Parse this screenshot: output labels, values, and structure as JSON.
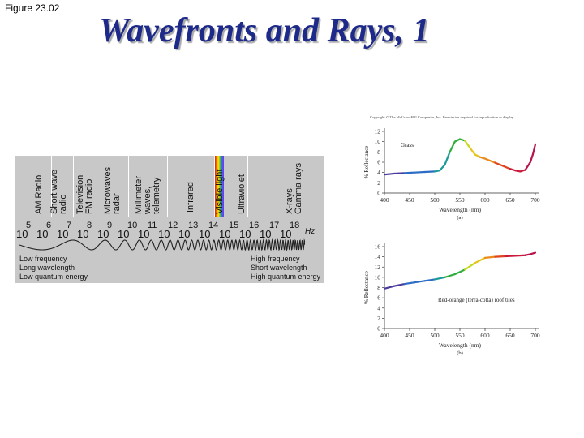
{
  "figure_label": "Figure 23.02",
  "title": "Wavefronts and Rays, 1",
  "spectrum": {
    "bands": [
      {
        "label": "AM Radio"
      },
      {
        "label": "Short wave\nradio"
      },
      {
        "label": "Television\nFM radio"
      },
      {
        "label": "Microwaves\nradar"
      },
      {
        "label": "Millimeter\nwaves,\ntelemetry"
      },
      {
        "label": "Infrared"
      },
      {
        "label": "Visible light"
      },
      {
        "label": "Ultraviolet"
      },
      {
        "label": "X-rays\nGamma rays"
      }
    ],
    "base": "10",
    "exponents": [
      "5",
      "6",
      "7",
      "8",
      "9",
      "10",
      "11",
      "12",
      "13",
      "14",
      "15",
      "16",
      "17",
      "18"
    ],
    "unit": "Hz",
    "low_labels": [
      "Low frequency",
      "Long wavelength",
      "Low quantum energy"
    ],
    "high_labels": [
      "High frequency",
      "Short wavelength",
      "High quantum energy"
    ]
  },
  "chart_data": [
    {
      "type": "line",
      "notice": "Copyright © The McGraw-Hill Companies, Inc. Permission required for reproduction or display.",
      "annotation": "Grass",
      "ylabel": "% Reflectance",
      "xlabel": "Wavelength (nm)",
      "caption": "(a)",
      "xlim": [
        400,
        700
      ],
      "ylim": [
        0,
        12
      ],
      "xticks": [
        400,
        450,
        500,
        550,
        600,
        650,
        700
      ],
      "yticks": [
        0,
        2,
        4,
        6,
        8,
        10,
        12
      ],
      "series": [
        {
          "x": [
            400,
            420,
            440,
            460,
            480,
            500,
            510,
            520,
            530,
            540,
            550,
            560,
            570,
            580,
            590,
            600,
            610,
            620,
            630,
            640,
            650,
            660,
            670,
            680,
            690,
            695,
            700
          ],
          "y": [
            3.6,
            3.8,
            3.9,
            4.0,
            4.1,
            4.2,
            4.4,
            5.5,
            8.0,
            10.0,
            10.5,
            10.2,
            8.8,
            7.5,
            7.0,
            6.7,
            6.3,
            5.9,
            5.5,
            5.1,
            4.7,
            4.4,
            4.2,
            4.5,
            6.0,
            7.5,
            9.5
          ]
        }
      ]
    },
    {
      "type": "line",
      "annotation": "Red-orange (terra-cotta) roof tiles",
      "ylabel": "% Reflectance",
      "xlabel": "Wavelength (nm)",
      "caption": "(b)",
      "xlim": [
        400,
        700
      ],
      "ylim": [
        0,
        16
      ],
      "xticks": [
        400,
        450,
        500,
        550,
        600,
        650,
        700
      ],
      "yticks": [
        0,
        2,
        4,
        6,
        8,
        10,
        12,
        14,
        16
      ],
      "series": [
        {
          "x": [
            400,
            420,
            440,
            460,
            480,
            500,
            520,
            540,
            560,
            580,
            600,
            620,
            640,
            660,
            680,
            690,
            700
          ],
          "y": [
            7.8,
            8.3,
            8.7,
            9.0,
            9.3,
            9.6,
            10.0,
            10.6,
            11.5,
            12.8,
            13.8,
            14.0,
            14.1,
            14.2,
            14.3,
            14.5,
            14.8
          ]
        }
      ]
    }
  ]
}
